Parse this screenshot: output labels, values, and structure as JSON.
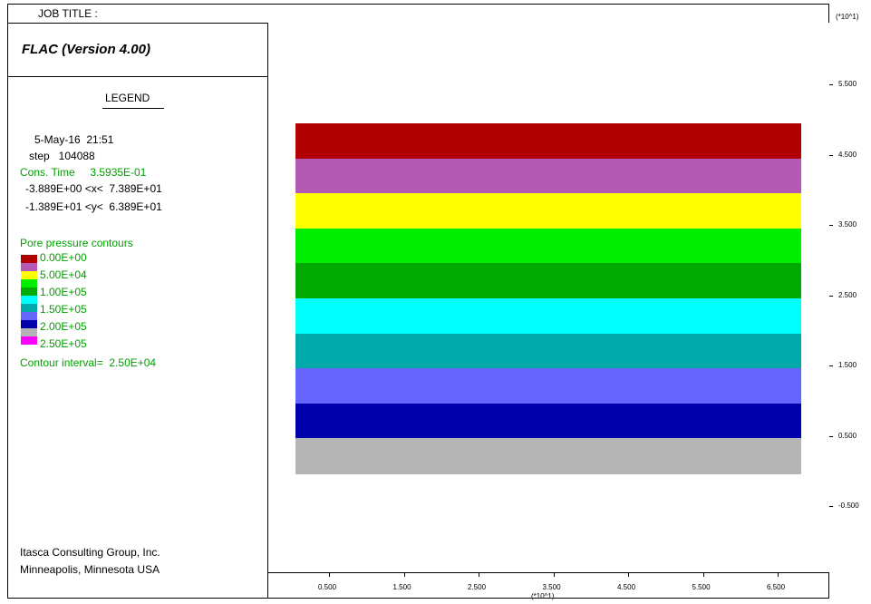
{
  "header": {
    "job_title": "JOB TITLE :"
  },
  "sidebar": {
    "program": "FLAC (Version 4.00)",
    "legend_title": "LEGEND",
    "date_time": "5-May-16  21:51",
    "step": "step   104088",
    "cons_time": "Cons. Time     3.5935E-01",
    "x_range": "-3.889E+00 <x<  7.389E+01",
    "y_range": "-1.389E+01 <y<  6.389E+01",
    "contour_heading": "Pore pressure contours",
    "contours": [
      {
        "label": "0.00E+00",
        "color": "#b00000"
      },
      {
        "label": "5.00E+04",
        "color": "#b45ab4"
      },
      {
        "label": "1.00E+05",
        "color": "#ffff00"
      },
      {
        "label": "1.50E+05",
        "color": "#00ee00"
      },
      {
        "label": "2.00E+05",
        "color": "#00aa00"
      },
      {
        "label": "2.50E+05",
        "color": "#00ffff"
      }
    ],
    "extra_swatches": [
      "#00aaaa",
      "#6666ff",
      "#0000aa",
      "#b4b4b4",
      "#ff00ff"
    ],
    "contour_interval": "Contour interval=  2.50E+04",
    "company_line1": "Itasca Consulting Group, Inc.",
    "company_line2": "Minneapolis, Minnesota  USA"
  },
  "plot": {
    "bands": [
      {
        "color": "#b00000"
      },
      {
        "color": "#b45ab4"
      },
      {
        "color": "#ffff00"
      },
      {
        "color": "#00ee00"
      },
      {
        "color": "#00aa00"
      },
      {
        "color": "#00ffff"
      },
      {
        "color": "#00aaaa"
      },
      {
        "color": "#6666ff"
      },
      {
        "color": "#0000aa"
      },
      {
        "color": "#b4b4b4"
      }
    ],
    "x_ticks": [
      "0.500",
      "1.500",
      "2.500",
      "3.500",
      "4.500",
      "5.500",
      "6.500"
    ],
    "x_multiplier": "(*10^1)",
    "y_ticks": [
      "5.500",
      "4.500",
      "3.500",
      "2.500",
      "1.500",
      "0.500",
      "-0.500"
    ],
    "y_multiplier": "(*10^1)"
  }
}
